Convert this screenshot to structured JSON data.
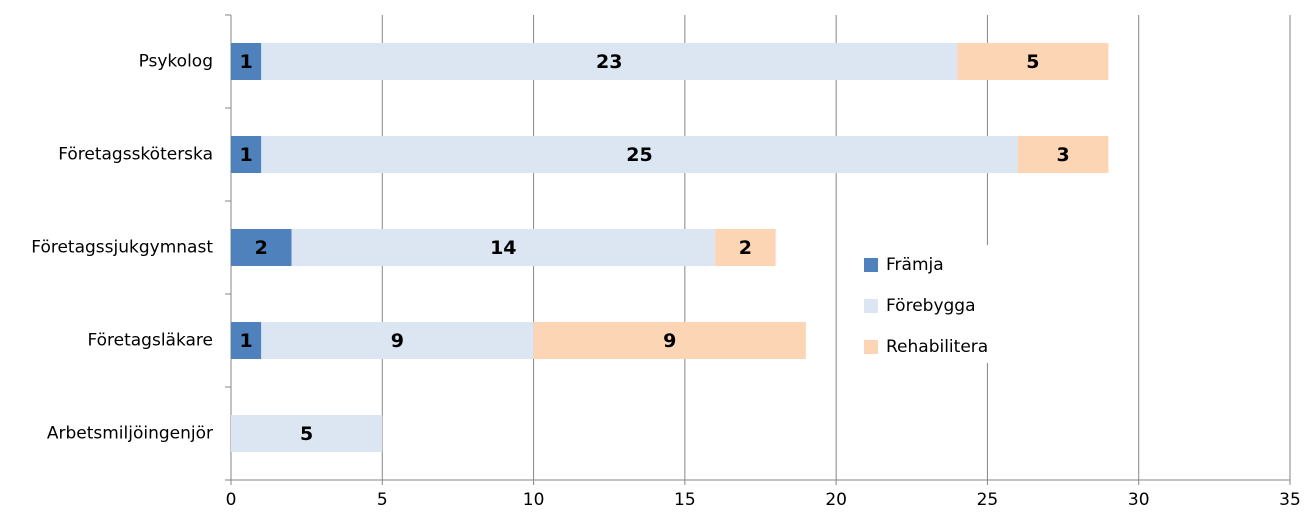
{
  "chart_data": {
    "type": "stacked-barh",
    "categories": [
      "Psykolog",
      "Företagssköterska",
      "Företagssjukgymnast",
      "Företagsläkare",
      "Arbetsmiljöingenjör"
    ],
    "series": [
      {
        "name": "Främja",
        "color": "#4f81bd",
        "values": [
          1,
          1,
          2,
          1,
          null
        ]
      },
      {
        "name": "Förebygga",
        "color": "#dce6f2",
        "values": [
          23,
          25,
          14,
          9,
          5
        ]
      },
      {
        "name": "Rehabilitera",
        "color": "#fcd5b5",
        "values": [
          5,
          3,
          2,
          9,
          null
        ]
      }
    ],
    "xlim": [
      0,
      35
    ],
    "xticks": [
      0,
      5,
      10,
      15,
      20,
      25,
      30,
      35
    ],
    "grid": true,
    "legend": "right"
  }
}
